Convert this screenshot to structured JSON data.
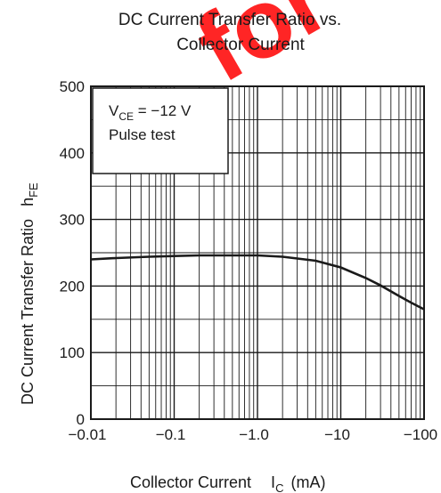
{
  "chart_data": {
    "type": "line",
    "title_line1": "DC Current Transfer Ratio vs.",
    "title_line2": "Collector Current",
    "xlabel": "Collector Current",
    "xlabel_symbol": "I",
    "xlabel_sub": "C",
    "xlabel_unit": "(mA)",
    "ylabel": "DC Current Transfer Ratio",
    "ylabel_symbol": "h",
    "ylabel_sub": "FE",
    "x_scale": "log",
    "xlim": [
      -0.01,
      -100
    ],
    "ylim": [
      0,
      500
    ],
    "x_ticks": [
      "−0.01",
      "−0.1",
      "−1.0",
      "−10",
      "−100"
    ],
    "y_ticks": [
      "0",
      "100",
      "200",
      "300",
      "400",
      "500"
    ],
    "y_tick_values": [
      0,
      100,
      200,
      300,
      400,
      500
    ],
    "grid": true,
    "annotation": {
      "line1_prefix": "V",
      "line1_sub": "CE",
      "line1_suffix": " = −12 V",
      "line2": "Pulse test"
    },
    "series": [
      {
        "x": [
          -0.01,
          -0.02,
          -0.05,
          -0.1,
          -0.2,
          -0.5,
          -1.0,
          -2,
          -5,
          -10,
          -20,
          -30,
          -50,
          -70,
          -100
        ],
        "y": [
          240,
          242,
          244,
          245,
          246,
          246,
          246,
          244,
          238,
          228,
          212,
          201,
          185,
          175,
          165
        ]
      }
    ]
  }
}
